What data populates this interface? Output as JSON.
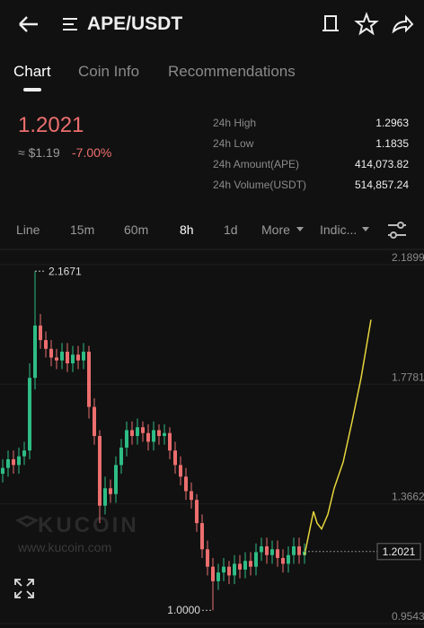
{
  "header": {
    "pair": "APE/USDT"
  },
  "tabs": [
    "Chart",
    "Coin Info",
    "Recommendations"
  ],
  "ticker": {
    "price": "1.2021",
    "fiat_price": "≈ $1.19",
    "change": "-7.00%",
    "stats": [
      [
        "24h High",
        "1.2963"
      ],
      [
        "24h Low",
        "1.1835"
      ],
      [
        "24h Amount(APE)",
        "414,073.82"
      ],
      [
        "24h Volume(USDT)",
        "514,857.24"
      ]
    ]
  },
  "intervals": [
    "Line",
    "15m",
    "60m",
    "8h",
    "1d",
    "More",
    "Indic..."
  ],
  "watermark": {
    "brand": "KUCOIN",
    "url": "www.kucoin.com"
  },
  "chart_data": {
    "type": "candlestick",
    "x": [
      0,
      1,
      2,
      3,
      4,
      5,
      6,
      7,
      8,
      9,
      10,
      11,
      12,
      13,
      14,
      15,
      16,
      17,
      18,
      19,
      20,
      21,
      22,
      23,
      24,
      25,
      26,
      27,
      28,
      29,
      30,
      31,
      32,
      33,
      34,
      35,
      36,
      37,
      38,
      39,
      40,
      41,
      42,
      43,
      44,
      45,
      46,
      47,
      48,
      49,
      50,
      51,
      52,
      53,
      54,
      55,
      56
    ],
    "open": [
      1.47,
      1.49,
      1.52,
      1.5,
      1.53,
      1.55,
      1.8,
      1.98,
      1.93,
      1.9,
      1.87,
      1.86,
      1.89,
      1.85,
      1.88,
      1.86,
      1.89,
      1.7,
      1.6,
      1.36,
      1.42,
      1.4,
      1.5,
      1.56,
      1.62,
      1.6,
      1.63,
      1.61,
      1.58,
      1.62,
      1.6,
      1.61,
      1.55,
      1.5,
      1.46,
      1.41,
      1.38,
      1.3,
      1.21,
      1.15,
      1.1,
      1.13,
      1.15,
      1.12,
      1.16,
      1.14,
      1.17,
      1.15,
      1.2,
      1.22,
      1.19,
      1.21,
      1.18,
      1.16,
      1.19,
      1.22,
      1.19
    ],
    "high": [
      1.52,
      1.55,
      1.55,
      1.56,
      1.58,
      1.85,
      2.1671,
      2.02,
      1.96,
      1.93,
      1.9,
      1.92,
      1.92,
      1.91,
      1.91,
      1.92,
      1.91,
      1.73,
      1.62,
      1.46,
      1.45,
      1.53,
      1.59,
      1.65,
      1.65,
      1.66,
      1.65,
      1.64,
      1.65,
      1.64,
      1.64,
      1.63,
      1.58,
      1.53,
      1.49,
      1.44,
      1.4,
      1.33,
      1.24,
      1.18,
      1.16,
      1.18,
      1.17,
      1.19,
      1.19,
      1.2,
      1.2,
      1.23,
      1.25,
      1.25,
      1.24,
      1.24,
      1.21,
      1.22,
      1.25,
      1.25,
      1.23
    ],
    "low": [
      1.44,
      1.46,
      1.47,
      1.47,
      1.5,
      1.52,
      1.76,
      1.9,
      1.87,
      1.84,
      1.83,
      1.83,
      1.82,
      1.82,
      1.83,
      1.83,
      1.66,
      1.57,
      1.3,
      1.33,
      1.37,
      1.37,
      1.47,
      1.53,
      1.57,
      1.57,
      1.58,
      1.55,
      1.55,
      1.57,
      1.57,
      1.52,
      1.47,
      1.43,
      1.38,
      1.35,
      1.27,
      1.18,
      1.12,
      1.0,
      1.07,
      1.1,
      1.09,
      1.09,
      1.11,
      1.11,
      1.12,
      1.12,
      1.17,
      1.16,
      1.16,
      1.15,
      1.13,
      1.13,
      1.16,
      1.16,
      1.16
    ],
    "close": [
      1.49,
      1.52,
      1.5,
      1.53,
      1.55,
      1.8,
      1.98,
      1.93,
      1.9,
      1.87,
      1.86,
      1.89,
      1.85,
      1.88,
      1.86,
      1.89,
      1.7,
      1.6,
      1.36,
      1.42,
      1.4,
      1.5,
      1.56,
      1.62,
      1.6,
      1.63,
      1.61,
      1.58,
      1.62,
      1.6,
      1.61,
      1.55,
      1.5,
      1.46,
      1.41,
      1.38,
      1.3,
      1.21,
      1.15,
      1.1,
      1.13,
      1.15,
      1.12,
      1.16,
      1.14,
      1.17,
      1.15,
      1.2,
      1.22,
      1.19,
      1.21,
      1.18,
      1.16,
      1.19,
      1.22,
      1.19,
      1.2021
    ],
    "up_color": "#2ebd85",
    "down_color": "#ec6e6e",
    "overlay": {
      "color": "#e6d53c",
      "x": [
        56,
        57,
        57.67,
        58.33,
        59.17,
        60.33,
        61.5,
        63.17,
        64.83,
        66.5,
        68.33
      ],
      "values": [
        1.19,
        1.28,
        1.34,
        1.3,
        1.28,
        1.33,
        1.42,
        1.51,
        1.65,
        1.8,
        2.0
      ]
    },
    "high_marker": 2.1671,
    "low_marker": {
      "value": 1,
      "label": "1.0000"
    },
    "last_price": 1.2021,
    "xlim": [
      -0.5,
      78.17
    ],
    "ylim": [
      0.939,
      2.236
    ],
    "yticks": [
      2.1899,
      1.7781,
      1.3662,
      0.9543
    ],
    "grid": true
  }
}
